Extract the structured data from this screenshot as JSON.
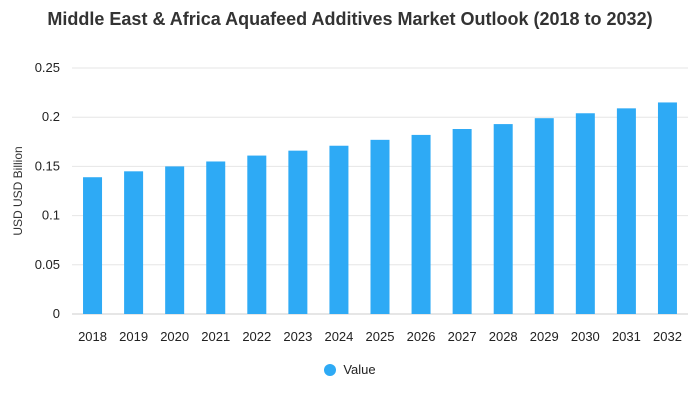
{
  "chart_data": {
    "type": "bar",
    "title": "Middle East & Africa Aquafeed Additives Market Outlook (2018 to 2032)",
    "ylabel": "USD USD Billion",
    "xlabel": "",
    "ylim": [
      0,
      0.25
    ],
    "yticks": [
      "0",
      "0.05",
      "0.1",
      "0.15",
      "0.2",
      "0.25"
    ],
    "grid": true,
    "legend_position": "bottom",
    "categories": [
      "2018",
      "2019",
      "2020",
      "2021",
      "2022",
      "2023",
      "2024",
      "2025",
      "2026",
      "2027",
      "2028",
      "2029",
      "2030",
      "2031",
      "2032"
    ],
    "series": [
      {
        "name": "Value",
        "color": "#2eaaf5",
        "values": [
          0.139,
          0.145,
          0.15,
          0.155,
          0.161,
          0.166,
          0.171,
          0.177,
          0.182,
          0.188,
          0.193,
          0.199,
          0.204,
          0.209,
          0.215
        ]
      }
    ]
  }
}
